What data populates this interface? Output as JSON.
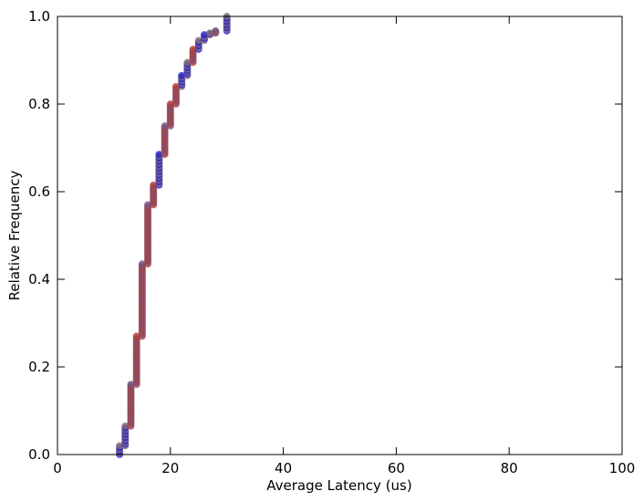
{
  "chart_data": {
    "type": "scatter",
    "title": "",
    "xlabel": "Average Latency (us)",
    "ylabel": "Relative Frequency",
    "xlim": [
      0,
      100
    ],
    "ylim": [
      0.0,
      1.0
    ],
    "x_ticks": [
      "0",
      "20",
      "40",
      "60",
      "80",
      "100"
    ],
    "y_ticks": [
      "0.0",
      "0.2",
      "0.4",
      "0.6",
      "0.8",
      "1.0"
    ],
    "grid": false,
    "legend": "none",
    "colors": [
      "#1f1fd6",
      "#c0392b",
      "#8a6f6f",
      "#6a5a8a"
    ],
    "steps": [
      {
        "x": 11,
        "y0": 0.0,
        "y1": 0.02
      },
      {
        "x": 12,
        "y0": 0.02,
        "y1": 0.065
      },
      {
        "x": 13,
        "y0": 0.065,
        "y1": 0.16
      },
      {
        "x": 14,
        "y0": 0.16,
        "y1": 0.27
      },
      {
        "x": 15,
        "y0": 0.27,
        "y1": 0.435
      },
      {
        "x": 16,
        "y0": 0.435,
        "y1": 0.57
      },
      {
        "x": 17,
        "y0": 0.57,
        "y1": 0.615
      },
      {
        "x": 18,
        "y0": 0.615,
        "y1": 0.685
      },
      {
        "x": 19,
        "y0": 0.685,
        "y1": 0.75
      },
      {
        "x": 20,
        "y0": 0.75,
        "y1": 0.8
      },
      {
        "x": 21,
        "y0": 0.8,
        "y1": 0.84
      },
      {
        "x": 22,
        "y0": 0.84,
        "y1": 0.865
      },
      {
        "x": 23,
        "y0": 0.865,
        "y1": 0.895
      },
      {
        "x": 24,
        "y0": 0.895,
        "y1": 0.925
      },
      {
        "x": 25,
        "y0": 0.925,
        "y1": 0.945
      },
      {
        "x": 26,
        "y0": 0.945,
        "y1": 0.958
      },
      {
        "x": 27,
        "y0": 0.958,
        "y1": 0.962
      },
      {
        "x": 28,
        "y0": 0.962,
        "y1": 0.967
      },
      {
        "x": 30,
        "y0": 0.967,
        "y1": 1.0
      }
    ]
  }
}
